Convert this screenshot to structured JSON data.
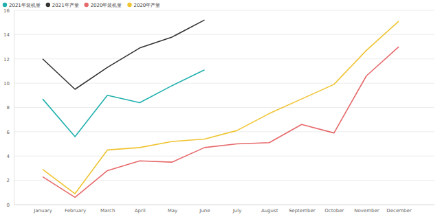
{
  "chart_data": {
    "type": "line",
    "categories": [
      "January",
      "February",
      "March",
      "April",
      "May",
      "June",
      "July",
      "August",
      "September",
      "October",
      "November",
      "December"
    ],
    "series": [
      {
        "name": "2021年装机量",
        "color": "#1fb0ad",
        "values": [
          8.7,
          5.6,
          9.0,
          8.4,
          9.8,
          11.1,
          null,
          null,
          null,
          null,
          null,
          null
        ]
      },
      {
        "name": "2021年产量",
        "color": "#333333",
        "values": [
          12.0,
          9.5,
          11.3,
          12.9,
          13.8,
          15.2,
          null,
          null,
          null,
          null,
          null,
          null
        ]
      },
      {
        "name": "2020年装机量",
        "color": "#e6686a",
        "values": [
          2.3,
          0.6,
          2.8,
          3.6,
          3.5,
          4.7,
          5.0,
          5.1,
          6.6,
          5.9,
          10.6,
          13.0
        ]
      },
      {
        "name": "2020年产量",
        "color": "#f0c330",
        "values": [
          2.9,
          0.9,
          4.5,
          4.7,
          5.2,
          5.4,
          6.1,
          7.5,
          8.7,
          9.9,
          12.7,
          15.1
        ]
      }
    ],
    "ylim": [
      0,
      16
    ],
    "yticks": [
      0,
      2,
      4,
      6,
      8,
      10,
      12,
      14,
      16
    ],
    "grid": true,
    "legend": "top-left"
  }
}
